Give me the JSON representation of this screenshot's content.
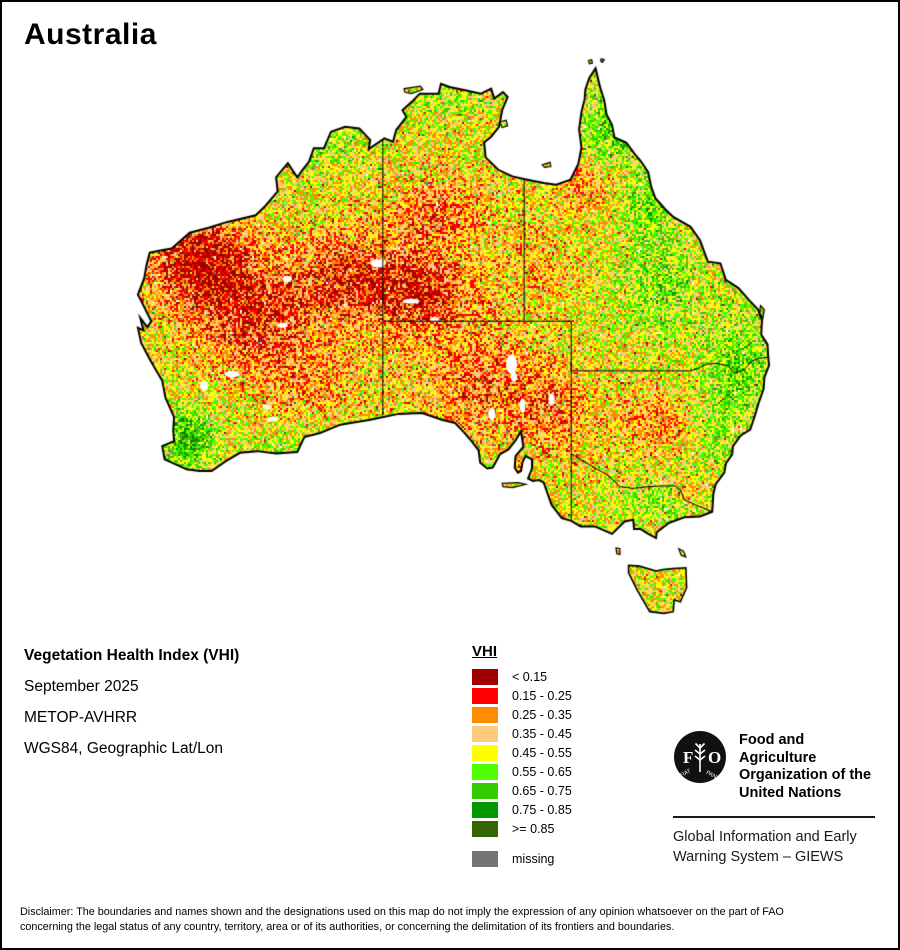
{
  "title": "Australia",
  "legend": {
    "title": "VHI",
    "entries": [
      {
        "label": "< 0.15",
        "color": "#A00000"
      },
      {
        "label": "0.15 - 0.25",
        "color": "#FF0000"
      },
      {
        "label": "0.25 - 0.35",
        "color": "#FF8C00"
      },
      {
        "label": "0.35 - 0.45",
        "color": "#FBCB7B"
      },
      {
        "label": "0.45 - 0.55",
        "color": "#FFFF00"
      },
      {
        "label": "0.55 - 0.65",
        "color": "#4DFF00"
      },
      {
        "label": "0.65 - 0.75",
        "color": "#33CC00"
      },
      {
        "label": "0.75 - 0.85",
        "color": "#009900"
      },
      {
        "label": ">= 0.85",
        "color": "#336600"
      }
    ],
    "missing": {
      "label": "missing",
      "color": "#757575"
    }
  },
  "info": {
    "lines": [
      "Vegetation Health Index (VHI)",
      "September 2025",
      "METOP-AVHRR",
      "WGS84, Geographic Lat/Lon"
    ]
  },
  "fao": {
    "logo": {
      "f": "F",
      "o": "O",
      "fiat": "FIAT",
      "panis": "PANIS"
    },
    "org_lines": [
      "Food and Agriculture",
      "Organization of the",
      "United Nations"
    ],
    "giews_lines": [
      "Global Information and Early",
      "Warning System – GIEWS"
    ]
  },
  "disclaimer": {
    "line1": "Disclaimer: The boundaries and names shown and the designations used on this map do not imply the expression of any opinion whatsoever on the part of FAO",
    "line2": "concerning the legal status of any country, territory, area or of its authorities, or concerning the delimitation of its frontiers and boundaries."
  }
}
